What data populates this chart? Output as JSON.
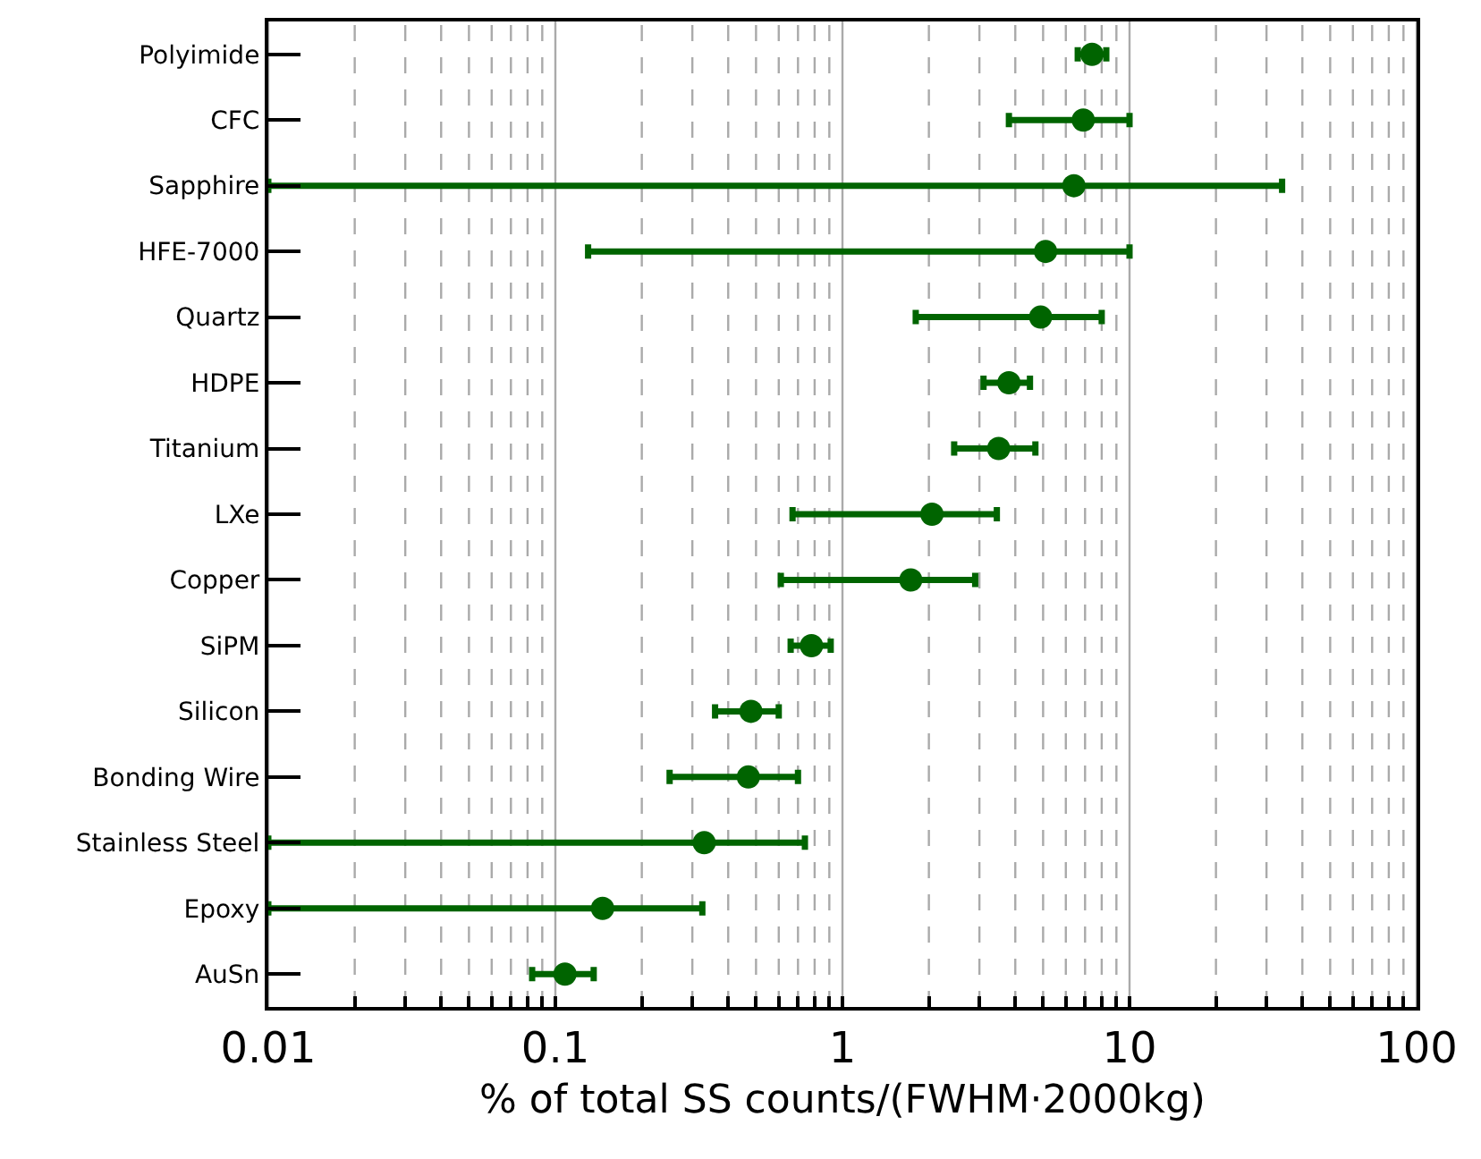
{
  "chart_data": {
    "type": "scatter",
    "orientation": "horizontal",
    "xlabel": "% of total SS counts/(FWHM·2000kg)",
    "categories": [
      "Polyimide",
      "CFC",
      "Sapphire",
      "HFE-7000",
      "Quartz",
      "HDPE",
      "Titanium",
      "LXe",
      "Copper",
      "SiPM",
      "Silicon",
      "Bonding Wire",
      "Stainless Steel",
      "Epoxy",
      "AuSn"
    ],
    "series": [
      {
        "color": "#006400",
        "values": [
          7.4,
          6.9,
          6.4,
          5.1,
          4.9,
          3.8,
          3.5,
          2.05,
          1.73,
          0.78,
          0.48,
          0.47,
          0.33,
          0.146,
          0.108
        ],
        "errors": [
          [
            6.6,
            8.3
          ],
          [
            3.8,
            10
          ],
          [
            0.01,
            34
          ],
          [
            0.13,
            10
          ],
          [
            1.8,
            8
          ],
          [
            3.1,
            4.5
          ],
          [
            2.45,
            4.7
          ],
          [
            0.67,
            3.45
          ],
          [
            0.61,
            2.9
          ],
          [
            0.66,
            0.91
          ],
          [
            0.36,
            0.6
          ],
          [
            0.25,
            0.7
          ],
          [
            0.01,
            0.74
          ],
          [
            0.01,
            0.325
          ],
          [
            0.083,
            0.136
          ]
        ]
      }
    ],
    "log": "x",
    "xlim": [
      0.01,
      100
    ],
    "xticks": [
      0.01,
      {
        "value": 0.02,
        "label": null
      },
      {
        "value": 0.03,
        "label": null
      },
      {
        "value": 0.04,
        "label": null
      },
      {
        "value": 0.05,
        "label": null
      },
      {
        "value": 0.06,
        "label": null
      },
      {
        "value": 0.07,
        "label": null
      },
      {
        "value": 0.08,
        "label": null
      },
      {
        "value": 0.09,
        "label": null
      },
      0.1,
      {
        "value": 0.2,
        "label": null
      },
      {
        "value": 0.3,
        "label": null
      },
      {
        "value": 0.4,
        "label": null
      },
      {
        "value": 0.5,
        "label": null
      },
      {
        "value": 0.6,
        "label": null
      },
      {
        "value": 0.7,
        "label": null
      },
      {
        "value": 0.8,
        "label": null
      },
      {
        "value": 0.9,
        "label": null
      },
      1,
      {
        "value": 2,
        "label": null
      },
      {
        "value": 3,
        "label": null
      },
      {
        "value": 4,
        "label": null
      },
      {
        "value": 5,
        "label": null
      },
      {
        "value": 6,
        "label": null
      },
      {
        "value": 7,
        "label": null
      },
      {
        "value": 8,
        "label": null
      },
      {
        "value": 9,
        "label": null
      },
      10,
      {
        "value": 20,
        "label": null
      },
      {
        "value": 30,
        "label": null
      },
      {
        "value": 40,
        "label": null
      },
      {
        "value": 50,
        "label": null
      },
      {
        "value": 60,
        "label": null
      },
      {
        "value": 70,
        "label": null
      },
      {
        "value": 80,
        "label": null
      },
      {
        "value": 90,
        "label": null
      },
      100
    ],
    "grid": "x",
    "marker": "circle",
    "legend": false
  }
}
